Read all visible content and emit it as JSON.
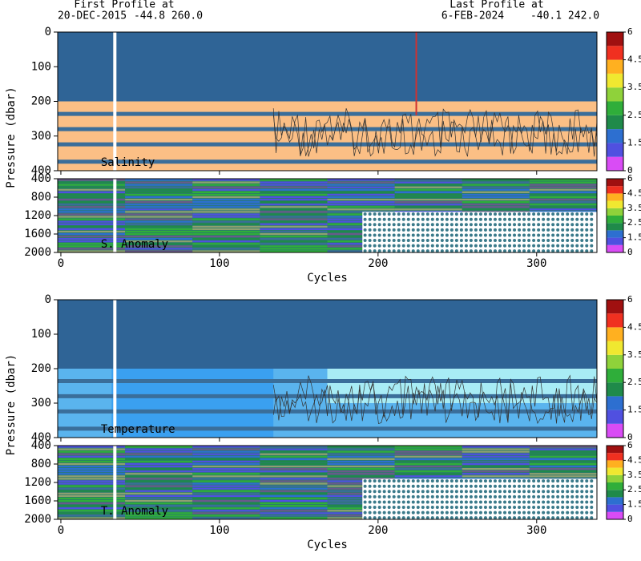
{
  "header": {
    "first_label": "First Profile at",
    "first_date": "20-DEC-2015",
    "first_pos": "-44.8 260.0",
    "last_label": "Last Profile at",
    "last_date": "6-FEB-2024",
    "last_pos": "-40.1 242.0"
  },
  "chart_data": [
    {
      "type": "heatmap",
      "label": "Salinity",
      "ylabel": "Pressure (dbar)",
      "xlim": [
        -2,
        338
      ],
      "xticks": [
        0,
        100,
        200,
        300
      ],
      "ylim": [
        0,
        400
      ],
      "yticks": [
        0,
        100,
        200,
        300,
        400
      ],
      "fill": "#fbbf85",
      "colorbar": {
        "ticks": [
          0,
          1.5,
          2.5,
          3.5,
          4.5,
          6
        ],
        "colors": [
          "#d94cf5",
          "#5050e0",
          "#2d6fd0",
          "#1f8a4a",
          "#2fae3a",
          "#8fd23a",
          "#f0e830",
          "#ffb020",
          "#f03020",
          "#a01010"
        ]
      }
    },
    {
      "type": "heatmap",
      "label": "S. Anomaly",
      "xlabel": "Cycles",
      "xlim": [
        -2,
        338
      ],
      "xticks": [
        0,
        100,
        200,
        300
      ],
      "ylim": [
        400,
        2000
      ],
      "yticks": [
        400,
        800,
        1200,
        1600,
        2000
      ],
      "colorbar": {
        "ticks": [
          0,
          1.5,
          2.5,
          3.5,
          4.5,
          6
        ],
        "colors": [
          "#d94cf5",
          "#5050e0",
          "#2d6fd0",
          "#1f8a4a",
          "#2fae3a",
          "#8fd23a",
          "#f0e830",
          "#ffb020",
          "#f03020",
          "#a01010"
        ]
      }
    },
    {
      "type": "heatmap",
      "label": "Temperature",
      "ylabel": "Pressure (dbar)",
      "xlim": [
        -2,
        338
      ],
      "xticks": [
        0,
        100,
        200,
        300
      ],
      "ylim": [
        0,
        400
      ],
      "yticks": [
        0,
        100,
        200,
        300,
        400
      ],
      "fill": "#5ab4ee",
      "colorbar": {
        "ticks": [
          0,
          1.5,
          2.5,
          3.5,
          4.5,
          6
        ],
        "colors": [
          "#d94cf5",
          "#5050e0",
          "#2d6fd0",
          "#1f8a4a",
          "#2fae3a",
          "#8fd23a",
          "#f0e830",
          "#ffb020",
          "#f03020",
          "#a01010"
        ]
      }
    },
    {
      "type": "heatmap",
      "label": "T. Anomaly",
      "xlabel": "Cycles",
      "xlim": [
        -2,
        338
      ],
      "xticks": [
        0,
        100,
        200,
        300
      ],
      "ylim": [
        400,
        2000
      ],
      "yticks": [
        400,
        800,
        1200,
        1600,
        2000
      ],
      "colorbar": {
        "ticks": [
          0,
          1.5,
          2.5,
          3.5,
          4.5,
          6
        ],
        "colors": [
          "#d94cf5",
          "#5050e0",
          "#2d6fd0",
          "#1f8a4a",
          "#2fae3a",
          "#8fd23a",
          "#f0e830",
          "#ffb020",
          "#f03020",
          "#a01010"
        ]
      }
    }
  ]
}
